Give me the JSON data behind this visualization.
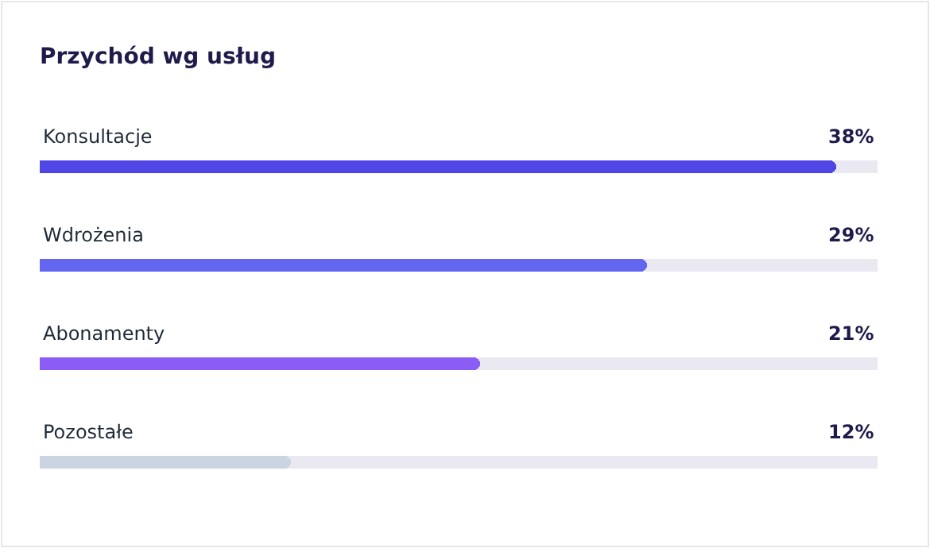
{
  "chart_data": {
    "type": "bar",
    "orientation": "horizontal",
    "title": "Przychód wg usług",
    "categories": [
      "Konsultacje",
      "Wdrożenia",
      "Abonamenty",
      "Pozostałe"
    ],
    "values": [
      38,
      29,
      21,
      12
    ],
    "colors": [
      "#4f46e5",
      "#6366f1",
      "#8b5cf6",
      "#cbd5e1"
    ],
    "value_labels": [
      "38%",
      "29%",
      "21%",
      "12%"
    ],
    "xlim": [
      0,
      40
    ]
  }
}
